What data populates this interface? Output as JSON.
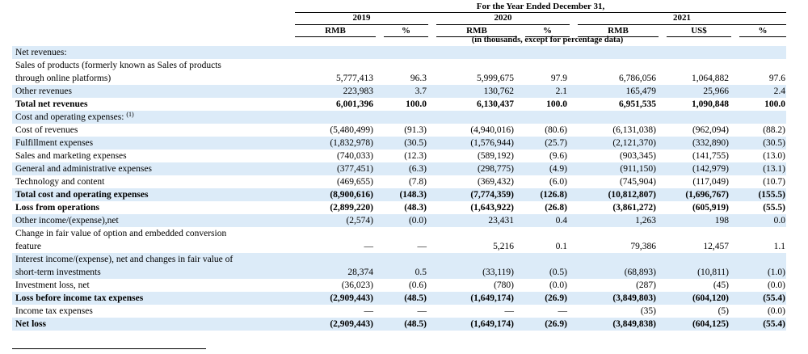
{
  "header": {
    "period_title": "For the Year Ended December 31,",
    "years": [
      "2019",
      "2020",
      "2021"
    ],
    "units": [
      "RMB",
      "%",
      "RMB",
      "%",
      "RMB",
      "US$",
      "%"
    ],
    "note": "(in thousands, except for percentage data)"
  },
  "rows": [
    {
      "label": "Net revenues:",
      "values": [
        "",
        "",
        "",
        "",
        "",
        "",
        ""
      ]
    },
    {
      "label": "Sales of products (formerly known as Sales of products",
      "label2": "through online platforms)",
      "values": [
        "5,777,413",
        "96.3",
        "5,999,675",
        "97.9",
        "6,786,056",
        "1,064,882",
        "97.6"
      ]
    },
    {
      "label": "Other revenues",
      "values": [
        "223,983",
        "3.7",
        "130,762",
        "2.1",
        "165,479",
        "25,966",
        "2.4"
      ]
    },
    {
      "label": "Total net revenues",
      "bold": true,
      "values": [
        "6,001,396",
        "100.0",
        "6,130,437",
        "100.0",
        "6,951,535",
        "1,090,848",
        "100.0"
      ]
    },
    {
      "label": "Cost and operating expenses:",
      "sup": "(1)",
      "values": [
        "",
        "",
        "",
        "",
        "",
        "",
        ""
      ]
    },
    {
      "label": "Cost of revenues",
      "values": [
        "(5,480,499)",
        "(91.3)",
        "(4,940,016)",
        "(80.6)",
        "(6,131,038)",
        "(962,094)",
        "(88.2)"
      ]
    },
    {
      "label": "Fulfillment expenses",
      "values": [
        "(1,832,978)",
        "(30.5)",
        "(1,576,944)",
        "(25.7)",
        "(2,121,370)",
        "(332,890)",
        "(30.5)"
      ]
    },
    {
      "label": "Sales and marketing expenses",
      "values": [
        "(740,033)",
        "(12.3)",
        "(589,192)",
        "(9.6)",
        "(903,345)",
        "(141,755)",
        "(13.0)"
      ]
    },
    {
      "label": "General and administrative expenses",
      "values": [
        "(377,451)",
        "(6.3)",
        "(298,775)",
        "(4.9)",
        "(911,150)",
        "(142,979)",
        "(13.1)"
      ]
    },
    {
      "label": "Technology and content",
      "values": [
        "(469,655)",
        "(7.8)",
        "(369,432)",
        "(6.0)",
        "(745,904)",
        "(117,049)",
        "(10.7)"
      ]
    },
    {
      "label": "Total cost and operating expenses",
      "bold": true,
      "values": [
        "(8,900,616)",
        "(148.3)",
        "(7,774,359)",
        "(126.8)",
        "(10,812,807)",
        "(1,696,767)",
        "(155.5)"
      ]
    },
    {
      "label": "Loss from operations",
      "bold": true,
      "values": [
        "(2,899,220)",
        "(48.3)",
        "(1,643,922)",
        "(26.8)",
        "(3,861,272)",
        "(605,919)",
        "(55.5)"
      ]
    },
    {
      "label": "Other income/(expense),net",
      "values": [
        "(2,574)",
        "(0.0)",
        "23,431",
        "0.4",
        "1,263",
        "198",
        "0.0"
      ]
    },
    {
      "label": "Change in fair value of option and embedded conversion",
      "label2": "feature",
      "values": [
        "—",
        "—",
        "5,216",
        "0.1",
        "79,386",
        "12,457",
        "1.1"
      ]
    },
    {
      "label": "Interest income/(expense), net and changes in fair value of",
      "label2": "short-term investments",
      "values": [
        "28,374",
        "0.5",
        "(33,119)",
        "(0.5)",
        "(68,893)",
        "(10,811)",
        "(1.0)"
      ]
    },
    {
      "label": "Investment loss, net",
      "values": [
        "(36,023)",
        "(0.6)",
        "(780)",
        "(0.0)",
        "(287)",
        "(45)",
        "(0.0)"
      ]
    },
    {
      "label": "Loss before income tax expenses",
      "bold": true,
      "values": [
        "(2,909,443)",
        "(48.5)",
        "(1,649,174)",
        "(26.9)",
        "(3,849,803)",
        "(604,120)",
        "(55.4)"
      ]
    },
    {
      "label": "Income tax expenses",
      "values": [
        "—",
        "—",
        "—",
        "—",
        "(35)",
        "(5)",
        "(0.0)"
      ]
    },
    {
      "label": "Net loss",
      "bold": true,
      "values": [
        "(2,909,443)",
        "(48.5)",
        "(1,649,174)",
        "(26.9)",
        "(3,849,838)",
        "(604,125)",
        "(55.4)"
      ]
    }
  ]
}
